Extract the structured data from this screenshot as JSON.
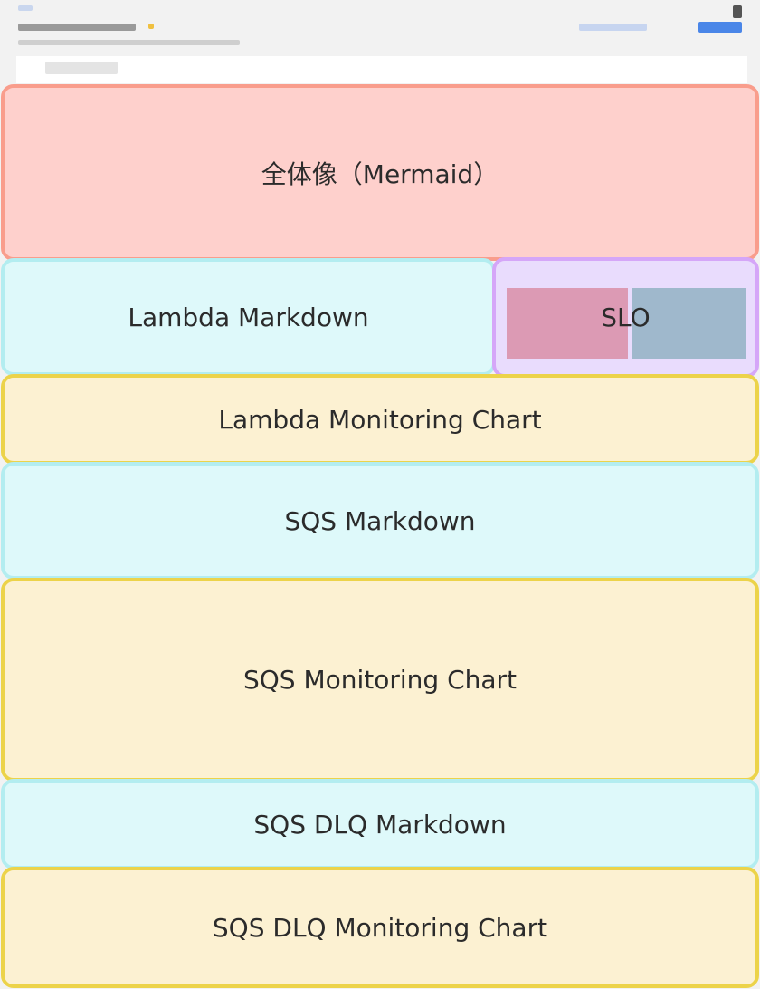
{
  "regions": [
    {
      "label": "全体像（Mermaid）",
      "kind": "mermaid",
      "color": "#f99d8c"
    },
    {
      "label": "Lambda Markdown",
      "kind": "markdown",
      "color": "#b3edf0"
    },
    {
      "label": "SLO",
      "kind": "slo",
      "color": "#d5a6f8"
    },
    {
      "label": "Lambda Monitoring Chart",
      "kind": "chart",
      "color": "#ecd34a"
    },
    {
      "label": "SQS Markdown",
      "kind": "markdown",
      "color": "#b3edf0"
    },
    {
      "label": "SQS Monitoring Chart",
      "kind": "chart",
      "color": "#ecd34a"
    },
    {
      "label": "SQS DLQ Markdown",
      "kind": "markdown",
      "color": "#b3edf0"
    },
    {
      "label": "SQS DLQ Monitoring Chart",
      "kind": "chart",
      "color": "#ecd34a"
    }
  ],
  "slo_panel_colors": [
    "#dc9ab4",
    "#9fb8cc"
  ]
}
